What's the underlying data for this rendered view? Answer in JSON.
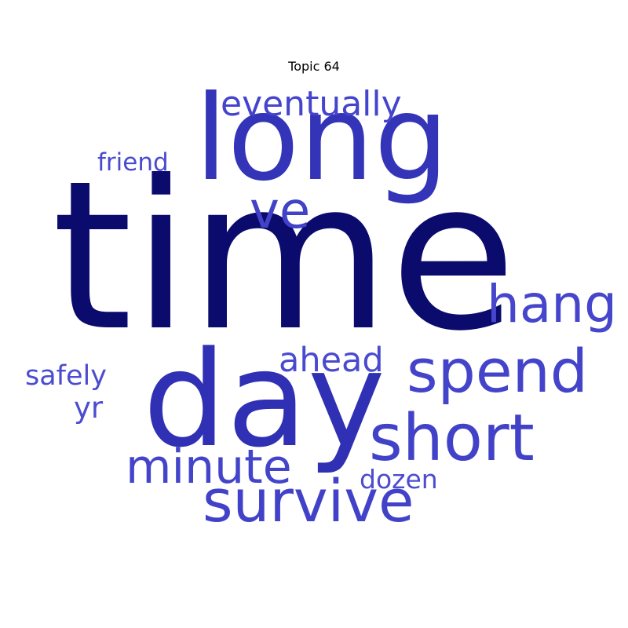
{
  "title": "Topic 64",
  "words": [
    {
      "id": "time",
      "text": "time",
      "color": "#0b0b6e"
    },
    {
      "id": "long",
      "text": "long",
      "color": "#3434b8"
    },
    {
      "id": "day",
      "text": "day",
      "color": "#3030b4"
    },
    {
      "id": "eventually",
      "text": "eventually",
      "color": "#4444cc"
    },
    {
      "id": "ve",
      "text": "ve",
      "color": "#4242c8"
    },
    {
      "id": "friend",
      "text": "friend",
      "color": "#4a4ad0"
    },
    {
      "id": "hang",
      "text": "hang",
      "color": "#4646cc"
    },
    {
      "id": "spend",
      "text": "spend",
      "color": "#4444ca"
    },
    {
      "id": "ahead",
      "text": "ahead",
      "color": "#4a4ad0"
    },
    {
      "id": "safely",
      "text": "safely",
      "color": "#4c4cd0"
    },
    {
      "id": "yr",
      "text": "yr",
      "color": "#4c4cd0"
    },
    {
      "id": "short",
      "text": "short",
      "color": "#4242c8"
    },
    {
      "id": "minute",
      "text": "minute",
      "color": "#4444ca"
    },
    {
      "id": "dozen",
      "text": "dozen",
      "color": "#4c4cd0"
    },
    {
      "id": "survive",
      "text": "survive",
      "color": "#4242c8"
    }
  ]
}
